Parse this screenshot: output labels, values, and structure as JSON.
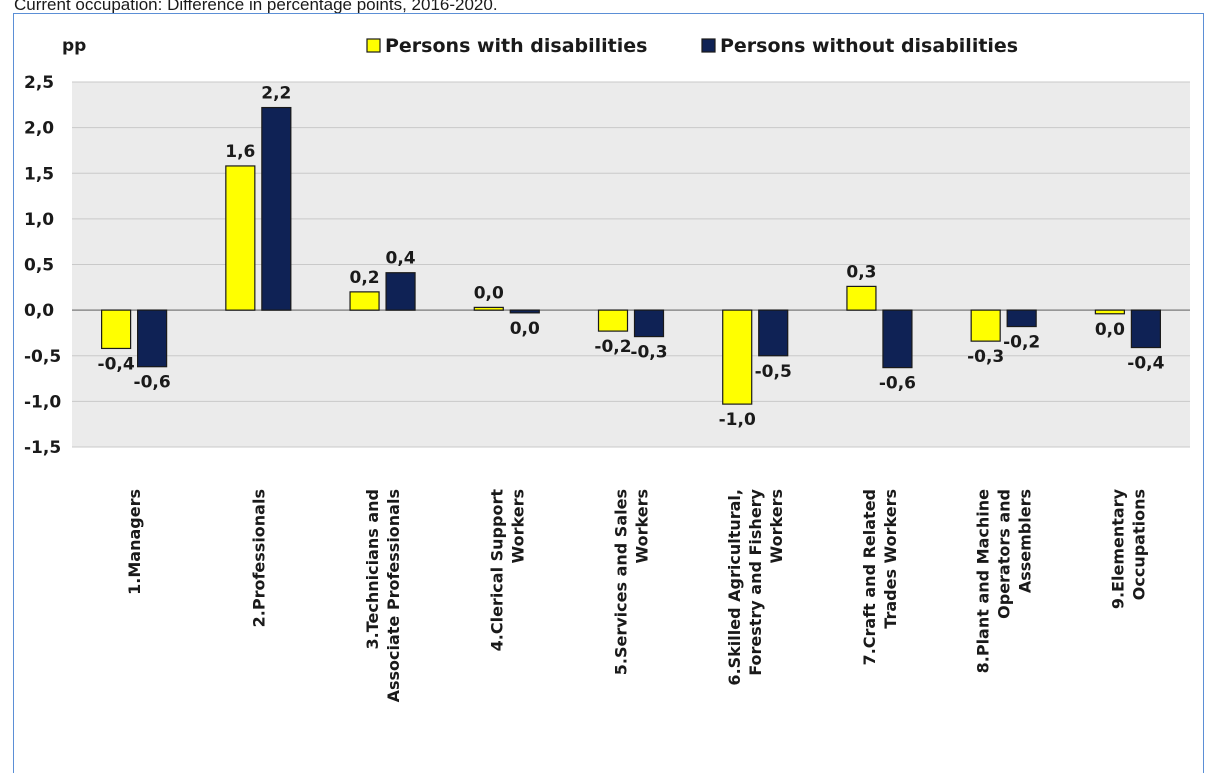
{
  "caption": "Current occupation: Difference in percentage points, 2016-2020.",
  "chart_data": {
    "type": "bar",
    "ylabel": "pp",
    "ylim": [
      -1.5,
      2.5
    ],
    "ytick_step": 0.5,
    "grid": true,
    "legend_position": "top",
    "categories": [
      [
        "1.Managers"
      ],
      [
        "2.Professionals"
      ],
      [
        "3.Technicians and",
        "Associate Professionals"
      ],
      [
        "4.Clerical Support",
        "Workers"
      ],
      [
        "5.Services and Sales",
        "Workers"
      ],
      [
        "6.Skilled Agricultural,",
        "Forestry and Fishery",
        "Workers"
      ],
      [
        "7.Craft and Related",
        "Trades Workers"
      ],
      [
        "8.Plant and Machine",
        "Operators and",
        "Assemblers"
      ],
      [
        "9.Elementary",
        "Occupations"
      ]
    ],
    "series": [
      {
        "name": "Persons with disabilities",
        "color": "#ffff00",
        "values": [
          -0.42,
          1.58,
          0.2,
          0.03,
          -0.23,
          -1.03,
          0.26,
          -0.34,
          -0.04
        ],
        "labels": [
          "-0,4",
          "1,6",
          "0,2",
          "0,0",
          "-0,2",
          "-1,0",
          "0,3",
          "-0,3",
          "0,0"
        ]
      },
      {
        "name": "Persons without disabilities",
        "color": "#0f2255",
        "values": [
          -0.62,
          2.22,
          0.41,
          -0.03,
          -0.29,
          -0.5,
          -0.63,
          -0.18,
          -0.41
        ],
        "labels": [
          "-0,6",
          "2,2",
          "0,4",
          "0,0",
          "-0,3",
          "-0,5",
          "-0,6",
          "-0,2",
          "-0,4"
        ]
      }
    ]
  }
}
